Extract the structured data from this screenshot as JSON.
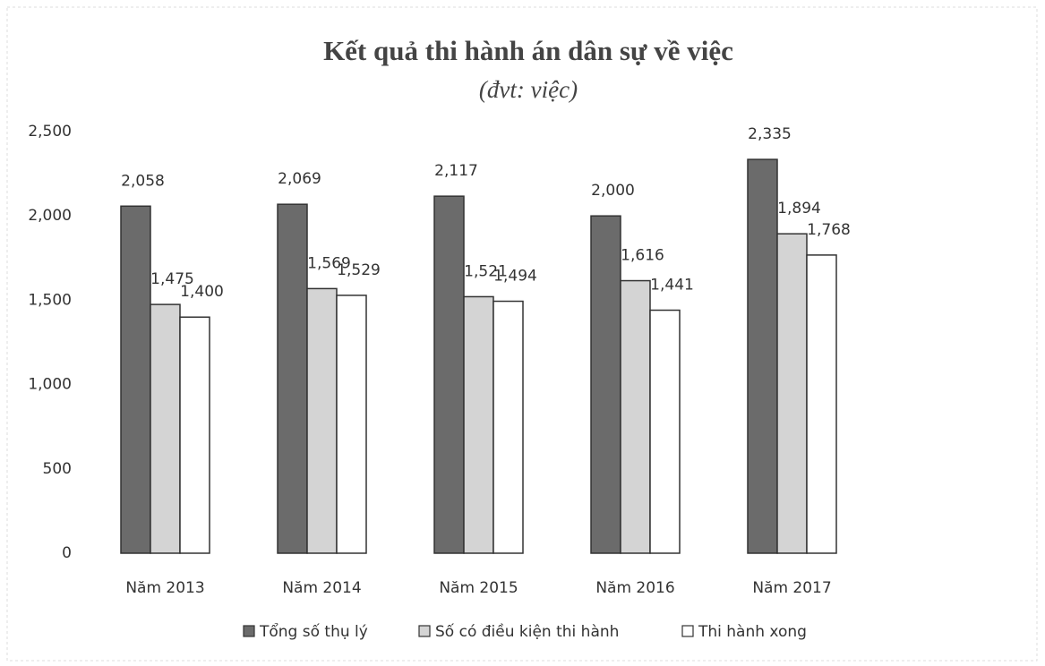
{
  "chart_data": {
    "type": "bar",
    "title": "Kết quả thi hành án dân sự về việc",
    "subtitle": "(đvt: việc)",
    "categories": [
      "Năm 2013",
      "Năm 2014",
      "Năm 2015",
      "Năm 2016",
      "Năm 2017"
    ],
    "series": [
      {
        "name": "Tổng số thụ lý",
        "color": "#6b6b6b",
        "values": [
          2058,
          2069,
          2117,
          2000,
          2335
        ],
        "value_labels": [
          "2,058",
          "2,069",
          "2,117",
          "2,000",
          "2,335"
        ]
      },
      {
        "name": "Số có điều kiện thi hành",
        "color": "#d4d4d4",
        "values": [
          1475,
          1569,
          1521,
          1616,
          1894
        ],
        "value_labels": [
          "1,475",
          "1,569",
          "1,521",
          "1,616",
          "1,894"
        ]
      },
      {
        "name": "Thi hành xong",
        "color": "#ffffff",
        "values": [
          1400,
          1529,
          1494,
          1441,
          1768
        ],
        "value_labels": [
          "1,400",
          "1,529",
          "1,494",
          "1,441",
          "1,768"
        ]
      }
    ],
    "ylim": [
      0,
      2500
    ],
    "yticks": [
      0,
      500,
      {
        "value": 1000,
        "label": "1,000"
      },
      {
        "value": 1500,
        "label": "1,500"
      },
      {
        "value": 2000,
        "label": "2,000"
      },
      {
        "value": 2500,
        "label": "2,500"
      }
    ],
    "legend": "bottom"
  }
}
